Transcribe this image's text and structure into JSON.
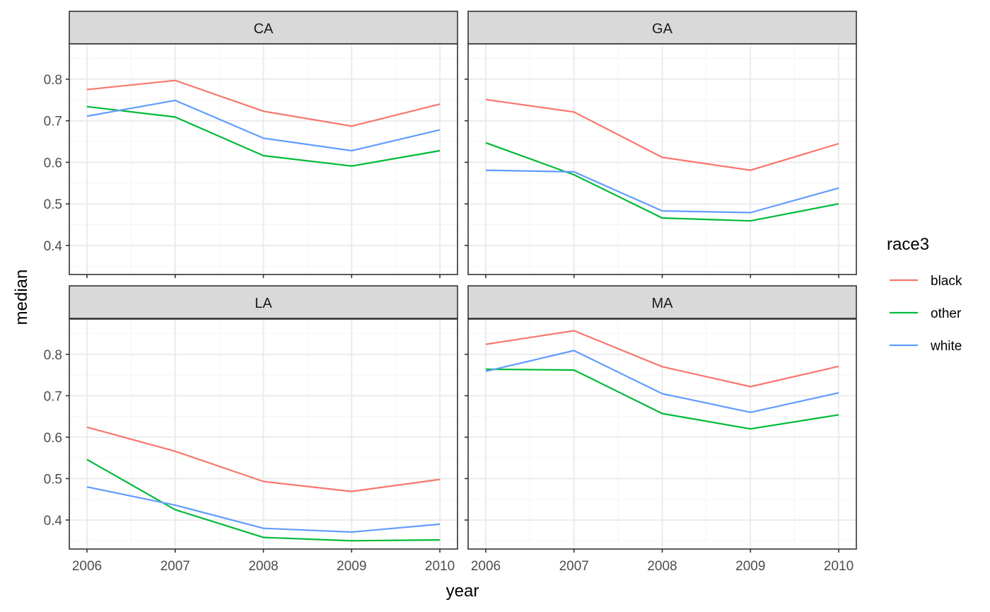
{
  "chart_data": {
    "type": "line",
    "facet_var": "state",
    "facets": [
      {
        "label": "CA",
        "series": [
          {
            "name": "black",
            "values": [
              0.775,
              0.797,
              0.723,
              0.687,
              0.74
            ]
          },
          {
            "name": "other",
            "values": [
              0.734,
              0.709,
              0.616,
              0.591,
              0.628
            ]
          },
          {
            "name": "white",
            "values": [
              0.711,
              0.749,
              0.658,
              0.628,
              0.678
            ]
          }
        ]
      },
      {
        "label": "GA",
        "series": [
          {
            "name": "black",
            "values": [
              0.751,
              0.721,
              0.612,
              0.581,
              0.645
            ]
          },
          {
            "name": "other",
            "values": [
              0.647,
              0.57,
              0.466,
              0.459,
              0.5
            ]
          },
          {
            "name": "white",
            "values": [
              0.581,
              0.577,
              0.483,
              0.479,
              0.538
            ]
          }
        ]
      },
      {
        "label": "LA",
        "series": [
          {
            "name": "black",
            "values": [
              0.624,
              0.566,
              0.493,
              0.469,
              0.498
            ]
          },
          {
            "name": "other",
            "values": [
              0.546,
              0.425,
              0.358,
              0.35,
              0.352
            ]
          },
          {
            "name": "white",
            "values": [
              0.48,
              0.436,
              0.38,
              0.371,
              0.39
            ]
          }
        ]
      },
      {
        "label": "MA",
        "series": [
          {
            "name": "black",
            "values": [
              0.824,
              0.857,
              0.77,
              0.722,
              0.771
            ]
          },
          {
            "name": "other",
            "values": [
              0.764,
              0.762,
              0.657,
              0.62,
              0.654
            ]
          },
          {
            "name": "white",
            "values": [
              0.759,
              0.809,
              0.705,
              0.66,
              0.707
            ]
          }
        ]
      }
    ],
    "x": [
      2006,
      2007,
      2008,
      2009,
      2010
    ],
    "x_tick_labels": [
      "2006",
      "2007",
      "2008",
      "2009",
      "2010"
    ],
    "y_ticks": [
      0.4,
      0.5,
      0.6,
      0.7,
      0.8
    ],
    "y_tick_labels": [
      "0.4",
      "0.5",
      "0.6",
      "0.7",
      "0.8"
    ],
    "xlabel": "year",
    "ylabel": "median",
    "xlim": [
      2005.8,
      2010.2
    ],
    "ylim": [
      0.33,
      0.885
    ],
    "grid": true,
    "legend": {
      "title": "race3",
      "position": "right",
      "entries": [
        "black",
        "other",
        "white"
      ]
    }
  },
  "colors": {
    "black": "#F8766D",
    "other": "#00BA38",
    "white": "#619CFF",
    "strip_fill": "#D9D9D9",
    "panel_border": "#333333",
    "grid_major": "#EBEBEB",
    "grid_minor": "#F5F5F5"
  }
}
